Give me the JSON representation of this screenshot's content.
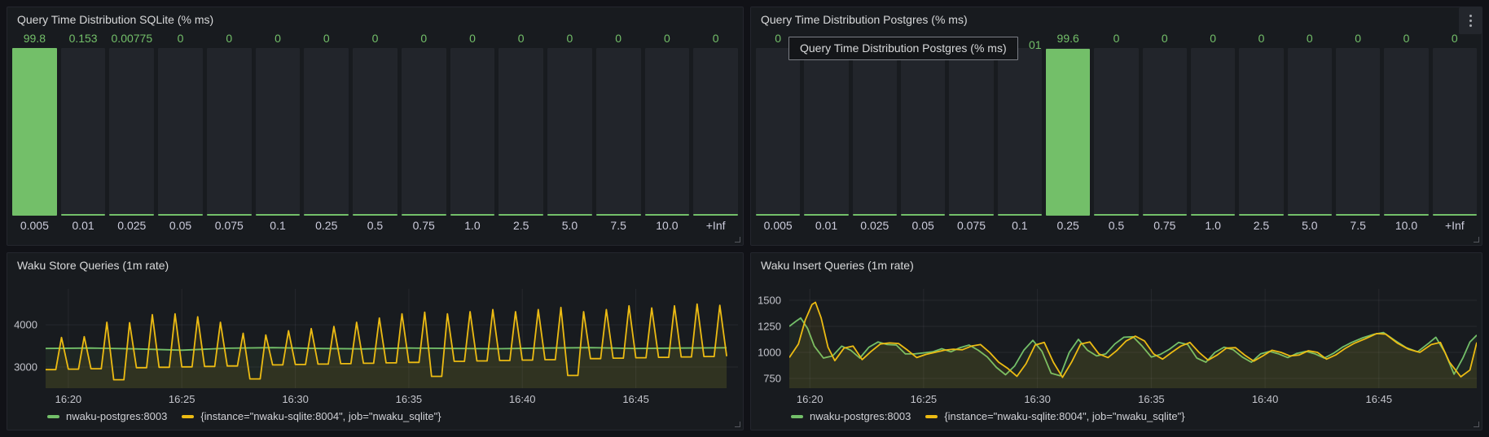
{
  "colors": {
    "green": "#73bf69",
    "yellow": "#ecbb13",
    "bar_background": "#22252b",
    "panel_background": "#181b1f",
    "page_background": "#111217",
    "grid": "rgba(204,204,220,0.08)"
  },
  "panels": {
    "sqlite_hist": {
      "title": "Query Time Distribution SQLite (% ms)",
      "buckets": [
        "0.005",
        "0.01",
        "0.025",
        "0.05",
        "0.075",
        "0.1",
        "0.25",
        "0.5",
        "0.75",
        "1.0",
        "2.5",
        "5.0",
        "7.5",
        "10.0",
        "+Inf"
      ],
      "values_display": [
        "99.8",
        "0.153",
        "0.00775",
        "0",
        "0",
        "0",
        "0",
        "0",
        "0",
        "0",
        "0",
        "0",
        "0",
        "0",
        "0"
      ],
      "values_pct": [
        99.8,
        0.153,
        0.00775,
        0,
        0,
        0,
        0,
        0,
        0,
        0,
        0,
        0,
        0,
        0,
        0
      ]
    },
    "postgres_hist": {
      "title": "Query Time Distribution Postgres (% ms)",
      "buckets": [
        "0.005",
        "0.01",
        "0.025",
        "0.05",
        "0.075",
        "0.1",
        "0.25",
        "0.5",
        "0.75",
        "1.0",
        "2.5",
        "5.0",
        "7.5",
        "10.0",
        "+Inf"
      ],
      "values_display": [
        "0",
        "",
        "",
        "",
        "",
        "",
        "99.6",
        "0",
        "0",
        "0",
        "0",
        "0",
        "0",
        "0",
        "0"
      ],
      "values_pct": [
        0,
        0,
        0,
        0,
        0,
        0,
        99.6,
        0,
        0,
        0,
        0,
        0,
        0,
        0,
        0
      ],
      "occluded_value_fragment": "01",
      "tooltip": {
        "text": "Query Time Distribution Postgres (% ms)"
      },
      "menu_icon": "kebab-vertical"
    },
    "store_ts": {
      "title": "Waku Store Queries (1m rate)",
      "chart_data": {
        "type": "line",
        "x_unit": "minutes after 16:00",
        "xlim": [
          19.0,
          49.5
        ],
        "ylim": [
          2500,
          4850
        ],
        "yticks": [
          3000,
          4000
        ],
        "xticks": [
          {
            "t": 20,
            "label": "16:20"
          },
          {
            "t": 25,
            "label": "16:25"
          },
          {
            "t": 30,
            "label": "16:30"
          },
          {
            "t": 35,
            "label": "16:35"
          },
          {
            "t": 40,
            "label": "16:40"
          },
          {
            "t": 45,
            "label": "16:45"
          }
        ],
        "series": [
          {
            "name": "nwaku-postgres:8003",
            "color": "#73bf69",
            "fill": "rgba(115,191,105,0.07)",
            "points": [
              [
                19,
                3440
              ],
              [
                21,
                3450
              ],
              [
                23,
                3430
              ],
              [
                25,
                3400
              ],
              [
                27,
                3445
              ],
              [
                29,
                3460
              ],
              [
                31,
                3440
              ],
              [
                33,
                3430
              ],
              [
                35,
                3450
              ],
              [
                37,
                3440
              ],
              [
                39,
                3435
              ],
              [
                41,
                3450
              ],
              [
                43,
                3460
              ],
              [
                45,
                3440
              ],
              [
                47,
                3450
              ],
              [
                49,
                3455
              ]
            ]
          },
          {
            "name": "{instance=\"nwaku-sqlite:8004\", job=\"nwaku_sqlite\"}",
            "color": "#ecbb13",
            "fill": "rgba(236,187,19,0.09)",
            "sawtooth": {
              "start": 19.0,
              "period": 1.0,
              "peaks": [
                3700,
                3720,
                4060,
                4050,
                4240,
                4260,
                4190,
                4060,
                3800,
                3760,
                3860,
                3910,
                3960,
                4060,
                4160,
                4260,
                4300,
                4260,
                4310,
                4360,
                4310,
                4360,
                4410,
                4310,
                4360,
                4450,
                4400,
                4450,
                4490,
                4460
              ],
              "troughs": [
                2940,
                2950,
                2960,
                2700,
                2985,
                2995,
                3005,
                3015,
                3025,
                2720,
                3050,
                3060,
                3070,
                3080,
                3090,
                3100,
                3110,
                2780,
                3135,
                3145,
                3155,
                3165,
                3175,
                2800,
                3200,
                3210,
                3220,
                3230,
                3240,
                3250,
                3255
              ]
            }
          }
        ]
      }
    },
    "insert_ts": {
      "title": "Waku Insert Queries (1m rate)",
      "chart_data": {
        "type": "line",
        "x_unit": "minutes after 16:00",
        "xlim": [
          19.1,
          49.3
        ],
        "ylim": [
          656,
          1609
        ],
        "yticks": [
          750,
          1000,
          1250,
          1500
        ],
        "xticks": [
          {
            "t": 20,
            "label": "16:20"
          },
          {
            "t": 25,
            "label": "16:25"
          },
          {
            "t": 30,
            "label": "16:30"
          },
          {
            "t": 35,
            "label": "16:35"
          },
          {
            "t": 40,
            "label": "16:40"
          },
          {
            "t": 45,
            "label": "16:45"
          }
        ],
        "series": [
          {
            "name": "nwaku-postgres:8003",
            "color": "#73bf69",
            "fill": "rgba(115,191,105,0.07)",
            "points": [
              [
                19.1,
                1250
              ],
              [
                19.4,
                1300
              ],
              [
                19.6,
                1330
              ],
              [
                19.9,
                1230
              ],
              [
                20.2,
                1060
              ],
              [
                20.6,
                945
              ],
              [
                21.0,
                965
              ],
              [
                21.4,
                1060
              ],
              [
                21.8,
                1020
              ],
              [
                22.2,
                945
              ],
              [
                22.6,
                1050
              ],
              [
                23.0,
                1100
              ],
              [
                23.4,
                1075
              ],
              [
                23.8,
                1070
              ],
              [
                24.2,
                985
              ],
              [
                24.6,
                985
              ],
              [
                25.0,
                995
              ],
              [
                25.4,
                1005
              ],
              [
                25.8,
                1035
              ],
              [
                26.2,
                1005
              ],
              [
                26.6,
                1045
              ],
              [
                27.0,
                1070
              ],
              [
                27.4,
                1020
              ],
              [
                27.8,
                955
              ],
              [
                28.2,
                855
              ],
              [
                28.6,
                785
              ],
              [
                29.0,
                870
              ],
              [
                29.4,
                1020
              ],
              [
                29.8,
                1115
              ],
              [
                30.2,
                1010
              ],
              [
                30.6,
                800
              ],
              [
                31.0,
                775
              ],
              [
                31.4,
                1000
              ],
              [
                31.8,
                1125
              ],
              [
                32.2,
                1020
              ],
              [
                32.6,
                965
              ],
              [
                33.0,
                985
              ],
              [
                33.4,
                1080
              ],
              [
                33.8,
                1145
              ],
              [
                34.2,
                1150
              ],
              [
                34.6,
                1060
              ],
              [
                35.0,
                955
              ],
              [
                35.4,
                980
              ],
              [
                35.8,
                1030
              ],
              [
                36.2,
                1095
              ],
              [
                36.6,
                1075
              ],
              [
                37.0,
                945
              ],
              [
                37.4,
                905
              ],
              [
                37.8,
                1000
              ],
              [
                38.2,
                1050
              ],
              [
                38.6,
                1025
              ],
              [
                39.0,
                955
              ],
              [
                39.4,
                905
              ],
              [
                39.8,
                985
              ],
              [
                40.2,
                1010
              ],
              [
                40.6,
                985
              ],
              [
                41.0,
                950
              ],
              [
                41.4,
                990
              ],
              [
                41.8,
                1010
              ],
              [
                42.2,
                985
              ],
              [
                42.6,
                945
              ],
              [
                43.0,
                990
              ],
              [
                43.4,
                1050
              ],
              [
                43.8,
                1095
              ],
              [
                44.3,
                1140
              ],
              [
                44.8,
                1175
              ],
              [
                45.2,
                1190
              ],
              [
                45.7,
                1115
              ],
              [
                46.2,
                1045
              ],
              [
                46.7,
                1005
              ],
              [
                47.2,
                1090
              ],
              [
                47.5,
                1145
              ],
              [
                47.9,
                1000
              ],
              [
                48.3,
                790
              ],
              [
                48.7,
                950
              ],
              [
                49.0,
                1100
              ],
              [
                49.3,
                1165
              ]
            ]
          },
          {
            "name": "{instance=\"nwaku-sqlite:8004\", job=\"nwaku_sqlite\"}",
            "color": "#ecbb13",
            "fill": "rgba(236,187,19,0.09)",
            "points": [
              [
                19.1,
                950
              ],
              [
                19.5,
                1080
              ],
              [
                19.8,
                1310
              ],
              [
                20.1,
                1460
              ],
              [
                20.25,
                1480
              ],
              [
                20.5,
                1330
              ],
              [
                20.8,
                1050
              ],
              [
                21.1,
                920
              ],
              [
                21.5,
                1040
              ],
              [
                21.9,
                1060
              ],
              [
                22.3,
                930
              ],
              [
                22.7,
                1010
              ],
              [
                23.1,
                1080
              ],
              [
                23.5,
                1090
              ],
              [
                23.9,
                1085
              ],
              [
                24.3,
                1020
              ],
              [
                24.7,
                950
              ],
              [
                25.1,
                980
              ],
              [
                25.5,
                1000
              ],
              [
                25.9,
                1020
              ],
              [
                26.3,
                1030
              ],
              [
                26.7,
                1025
              ],
              [
                27.1,
                1060
              ],
              [
                27.5,
                1075
              ],
              [
                27.9,
                1000
              ],
              [
                28.3,
                905
              ],
              [
                28.7,
                845
              ],
              [
                29.1,
                770
              ],
              [
                29.5,
                890
              ],
              [
                29.9,
                1070
              ],
              [
                30.3,
                1095
              ],
              [
                30.7,
                905
              ],
              [
                31.1,
                760
              ],
              [
                31.5,
                905
              ],
              [
                31.9,
                1080
              ],
              [
                32.3,
                1100
              ],
              [
                32.7,
                985
              ],
              [
                33.1,
                950
              ],
              [
                33.5,
                1020
              ],
              [
                33.9,
                1110
              ],
              [
                34.3,
                1155
              ],
              [
                34.7,
                1110
              ],
              [
                35.1,
                985
              ],
              [
                35.5,
                935
              ],
              [
                35.9,
                1000
              ],
              [
                36.3,
                1060
              ],
              [
                36.7,
                1095
              ],
              [
                37.1,
                1000
              ],
              [
                37.5,
                925
              ],
              [
                37.9,
                975
              ],
              [
                38.3,
                1040
              ],
              [
                38.7,
                1045
              ],
              [
                39.1,
                975
              ],
              [
                39.5,
                915
              ],
              [
                39.9,
                965
              ],
              [
                40.3,
                1020
              ],
              [
                40.7,
                1000
              ],
              [
                41.1,
                965
              ],
              [
                41.5,
                975
              ],
              [
                41.9,
                1015
              ],
              [
                42.3,
                1000
              ],
              [
                42.7,
                935
              ],
              [
                43.1,
                975
              ],
              [
                43.5,
                1035
              ],
              [
                43.9,
                1085
              ],
              [
                44.4,
                1130
              ],
              [
                44.9,
                1180
              ],
              [
                45.3,
                1175
              ],
              [
                45.8,
                1090
              ],
              [
                46.3,
                1030
              ],
              [
                46.8,
                1000
              ],
              [
                47.3,
                1075
              ],
              [
                47.7,
                1095
              ],
              [
                48.1,
                905
              ],
              [
                48.6,
                765
              ],
              [
                49.0,
                830
              ],
              [
                49.3,
                1095
              ]
            ]
          }
        ]
      }
    }
  }
}
